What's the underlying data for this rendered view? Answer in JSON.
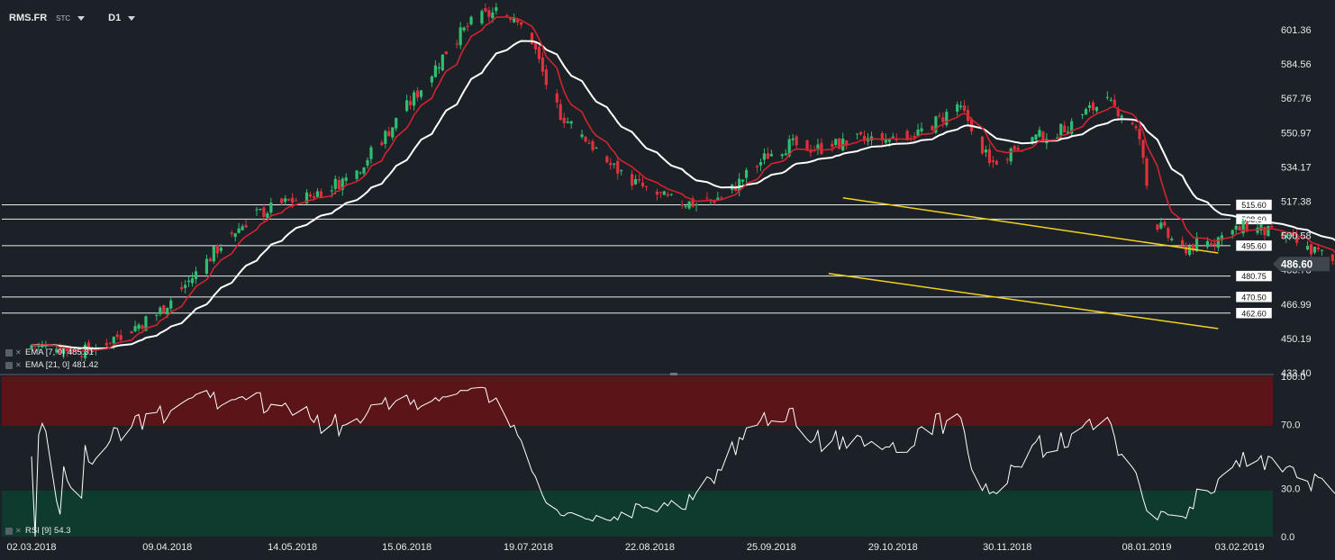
{
  "header": {
    "symbol": "RMS.FR",
    "type": "STC",
    "timeframe": "D1"
  },
  "legend": {
    "ema7": {
      "label": "EMA [7, 0]",
      "value": "485.31"
    },
    "ema21": {
      "label": "EMA [21, 0]",
      "value": "481.42"
    },
    "rsi": {
      "label": "RSI [9]",
      "value": "54.3"
    }
  },
  "colors": {
    "background": "#1b2127",
    "bull": "#2fbf71",
    "bear": "#e0303b",
    "ema_fast": "#d2232f",
    "ema_slow": "#ffffff",
    "trendline": "#f2d11d",
    "rsi_overbought_zone": "#5b1518",
    "rsi_oversold_zone": "#0f3a2e",
    "price_badge": "#3d454d"
  },
  "chart_data": {
    "type": "candlestick",
    "ylim": [
      433.4,
      615
    ],
    "y_ticks": [
      "601.36",
      "584.56",
      "567.76",
      "550.97",
      "534.17",
      "517.38",
      "500.58",
      "483.78",
      "466.99",
      "450.19",
      "433.40"
    ],
    "x_ticks": [
      "02.03.2018",
      "09.04.2018",
      "14.05.2018",
      "15.06.2018",
      "19.07.2018",
      "22.08.2018",
      "25.09.2018",
      "29.10.2018",
      "30.11.2018",
      "08.01.2019",
      "03.02.2019"
    ],
    "last_price": "486.60",
    "levels": [
      "515.60",
      "508.60",
      "495.60",
      "480.75",
      "470.50",
      "462.60"
    ],
    "trendlines": [
      {
        "from": [
          "2018-10-15",
          519
        ],
        "to": [
          "2019-01-28",
          492
        ]
      },
      {
        "from": [
          "2018-10-11",
          482
        ],
        "to": [
          "2019-01-28",
          455
        ]
      }
    ],
    "rsi": {
      "ylim": [
        0,
        100
      ],
      "ticks": [
        "100.0",
        "70.0",
        "30.0",
        "0.0"
      ],
      "overbought": 70,
      "oversold": 30,
      "last": 54.3
    },
    "ema_last": {
      "ema7": 485.31,
      "ema21": 481.42
    }
  }
}
